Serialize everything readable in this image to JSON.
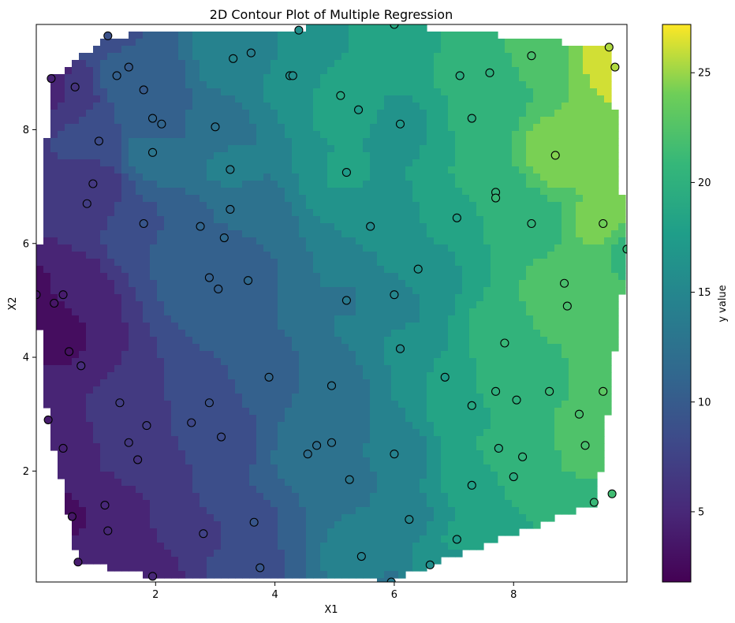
{
  "chart_data": {
    "type": "contour",
    "title": "2D Contour Plot of Multiple Regression",
    "xlabel": "X1",
    "ylabel": "X2",
    "colorbar_label": "y value",
    "colormap": "viridis",
    "xlim": [
      0.0,
      9.9
    ],
    "ylim": [
      0.05,
      9.85
    ],
    "x_ticks": [
      2,
      4,
      6,
      8
    ],
    "y_ticks": [
      2,
      4,
      6,
      8
    ],
    "colorbar_range": [
      1.8,
      27.2
    ],
    "colorbar_ticks": [
      5,
      10,
      15,
      20,
      25
    ],
    "hull": [
      [
        1.2,
        9.65
      ],
      [
        6.0,
        9.85
      ],
      [
        9.6,
        9.45
      ],
      [
        9.9,
        5.9
      ],
      [
        9.4,
        1.45
      ],
      [
        6.6,
        0.35
      ],
      [
        5.95,
        0.05
      ],
      [
        1.95,
        0.15
      ],
      [
        0.7,
        0.4
      ],
      [
        0.2,
        2.9
      ],
      [
        0.0,
        5.1
      ],
      [
        0.25,
        8.9
      ]
    ],
    "points": [
      {
        "x": 1.2,
        "y": 9.65,
        "v": 9.0
      },
      {
        "x": 4.4,
        "y": 9.75,
        "v": 16.0
      },
      {
        "x": 6.0,
        "y": 9.85,
        "v": 19.0
      },
      {
        "x": 9.6,
        "y": 9.45,
        "v": 25.5
      },
      {
        "x": 1.55,
        "y": 9.1,
        "v": 10.0
      },
      {
        "x": 1.35,
        "y": 8.95,
        "v": 10.5
      },
      {
        "x": 3.6,
        "y": 9.35,
        "v": 14.0
      },
      {
        "x": 3.3,
        "y": 9.25,
        "v": 15.0
      },
      {
        "x": 4.25,
        "y": 8.95,
        "v": 16.0
      },
      {
        "x": 4.3,
        "y": 8.95,
        "v": 16.0
      },
      {
        "x": 7.1,
        "y": 8.95,
        "v": 19.5
      },
      {
        "x": 7.6,
        "y": 9.0,
        "v": 20.0
      },
      {
        "x": 8.3,
        "y": 9.3,
        "v": 22.0
      },
      {
        "x": 9.7,
        "y": 9.1,
        "v": 25.5
      },
      {
        "x": 0.25,
        "y": 8.9,
        "v": 4.5
      },
      {
        "x": 0.65,
        "y": 8.75,
        "v": 6.0
      },
      {
        "x": 1.8,
        "y": 8.7,
        "v": 10.0
      },
      {
        "x": 5.1,
        "y": 8.6,
        "v": 19.0
      },
      {
        "x": 5.4,
        "y": 8.35,
        "v": 17.5
      },
      {
        "x": 1.95,
        "y": 8.2,
        "v": 11.0
      },
      {
        "x": 2.1,
        "y": 8.1,
        "v": 11.0
      },
      {
        "x": 3.0,
        "y": 8.05,
        "v": 12.5
      },
      {
        "x": 6.1,
        "y": 8.1,
        "v": 17.0
      },
      {
        "x": 7.3,
        "y": 8.2,
        "v": 19.5
      },
      {
        "x": 1.05,
        "y": 7.8,
        "v": 8.5
      },
      {
        "x": 1.95,
        "y": 7.6,
        "v": 13.0
      },
      {
        "x": 8.7,
        "y": 7.55,
        "v": 24.5
      },
      {
        "x": 3.25,
        "y": 7.3,
        "v": 14.0
      },
      {
        "x": 5.2,
        "y": 7.25,
        "v": 17.5
      },
      {
        "x": 0.95,
        "y": 7.05,
        "v": 6.5
      },
      {
        "x": 7.7,
        "y": 6.9,
        "v": 20.5
      },
      {
        "x": 7.7,
        "y": 6.8,
        "v": 21.0
      },
      {
        "x": 0.85,
        "y": 6.7,
        "v": 7.0
      },
      {
        "x": 3.25,
        "y": 6.6,
        "v": 12.0
      },
      {
        "x": 7.05,
        "y": 6.45,
        "v": 18.0
      },
      {
        "x": 1.8,
        "y": 6.35,
        "v": 9.5
      },
      {
        "x": 2.75,
        "y": 6.3,
        "v": 11.0
      },
      {
        "x": 5.6,
        "y": 6.3,
        "v": 15.5
      },
      {
        "x": 8.3,
        "y": 6.35,
        "v": 20.5
      },
      {
        "x": 9.5,
        "y": 6.35,
        "v": 24.0
      },
      {
        "x": 3.15,
        "y": 6.1,
        "v": 11.5
      },
      {
        "x": 9.9,
        "y": 5.9,
        "v": 21.0
      },
      {
        "x": 6.4,
        "y": 5.55,
        "v": 16.5
      },
      {
        "x": 2.9,
        "y": 5.4,
        "v": 10.5
      },
      {
        "x": 3.55,
        "y": 5.35,
        "v": 11.5
      },
      {
        "x": 8.85,
        "y": 5.3,
        "v": 22.0
      },
      {
        "x": 3.05,
        "y": 5.2,
        "v": 10.5
      },
      {
        "x": 0.0,
        "y": 5.1,
        "v": 3.5
      },
      {
        "x": 0.45,
        "y": 5.1,
        "v": 4.0
      },
      {
        "x": 6.0,
        "y": 5.1,
        "v": 15.0
      },
      {
        "x": 0.3,
        "y": 4.95,
        "v": 3.5
      },
      {
        "x": 5.2,
        "y": 5.0,
        "v": 13.5
      },
      {
        "x": 8.9,
        "y": 4.9,
        "v": 22.0
      },
      {
        "x": 7.85,
        "y": 4.25,
        "v": 21.0
      },
      {
        "x": 6.1,
        "y": 4.15,
        "v": 15.5
      },
      {
        "x": 0.55,
        "y": 4.1,
        "v": 3.0
      },
      {
        "x": 0.75,
        "y": 3.85,
        "v": 5.5
      },
      {
        "x": 3.9,
        "y": 3.65,
        "v": 11.0
      },
      {
        "x": 6.85,
        "y": 3.65,
        "v": 17.5
      },
      {
        "x": 4.95,
        "y": 3.5,
        "v": 12.5
      },
      {
        "x": 7.7,
        "y": 3.4,
        "v": 20.0
      },
      {
        "x": 8.6,
        "y": 3.4,
        "v": 21.0
      },
      {
        "x": 9.5,
        "y": 3.4,
        "v": 23.0
      },
      {
        "x": 8.05,
        "y": 3.25,
        "v": 20.0
      },
      {
        "x": 1.4,
        "y": 3.2,
        "v": 7.0
      },
      {
        "x": 2.9,
        "y": 3.2,
        "v": 9.0
      },
      {
        "x": 7.3,
        "y": 3.15,
        "v": 19.0
      },
      {
        "x": 9.1,
        "y": 3.0,
        "v": 22.0
      },
      {
        "x": 0.2,
        "y": 2.9,
        "v": 4.0
      },
      {
        "x": 2.6,
        "y": 2.85,
        "v": 8.0
      },
      {
        "x": 1.85,
        "y": 2.8,
        "v": 7.0
      },
      {
        "x": 3.1,
        "y": 2.6,
        "v": 8.5
      },
      {
        "x": 4.95,
        "y": 2.5,
        "v": 12.5
      },
      {
        "x": 1.55,
        "y": 2.5,
        "v": 6.5
      },
      {
        "x": 4.7,
        "y": 2.45,
        "v": 12.0
      },
      {
        "x": 9.2,
        "y": 2.45,
        "v": 22.0
      },
      {
        "x": 0.45,
        "y": 2.4,
        "v": 4.5
      },
      {
        "x": 7.75,
        "y": 2.4,
        "v": 19.5
      },
      {
        "x": 4.55,
        "y": 2.3,
        "v": 12.0
      },
      {
        "x": 6.0,
        "y": 2.3,
        "v": 14.5
      },
      {
        "x": 8.15,
        "y": 2.25,
        "v": 20.5
      },
      {
        "x": 1.7,
        "y": 2.2,
        "v": 6.0
      },
      {
        "x": 8.0,
        "y": 1.9,
        "v": 19.5
      },
      {
        "x": 5.25,
        "y": 1.85,
        "v": 13.0
      },
      {
        "x": 7.3,
        "y": 1.75,
        "v": 18.0
      },
      {
        "x": 9.65,
        "y": 1.6,
        "v": 21.5
      },
      {
        "x": 9.35,
        "y": 1.45,
        "v": 21.0
      },
      {
        "x": 1.15,
        "y": 1.4,
        "v": 5.0
      },
      {
        "x": 0.6,
        "y": 1.2,
        "v": 3.5
      },
      {
        "x": 6.25,
        "y": 1.15,
        "v": 15.0
      },
      {
        "x": 3.65,
        "y": 1.1,
        "v": 9.5
      },
      {
        "x": 1.2,
        "y": 0.95,
        "v": 5.0
      },
      {
        "x": 2.8,
        "y": 0.9,
        "v": 7.5
      },
      {
        "x": 7.05,
        "y": 0.8,
        "v": 17.5
      },
      {
        "x": 5.45,
        "y": 0.5,
        "v": 14.5
      },
      {
        "x": 0.7,
        "y": 0.4,
        "v": 4.0
      },
      {
        "x": 6.6,
        "y": 0.35,
        "v": 16.0
      },
      {
        "x": 3.75,
        "y": 0.3,
        "v": 9.5
      },
      {
        "x": 1.95,
        "y": 0.15,
        "v": 5.0
      },
      {
        "x": 5.95,
        "y": 0.05,
        "v": 13.5
      }
    ]
  }
}
